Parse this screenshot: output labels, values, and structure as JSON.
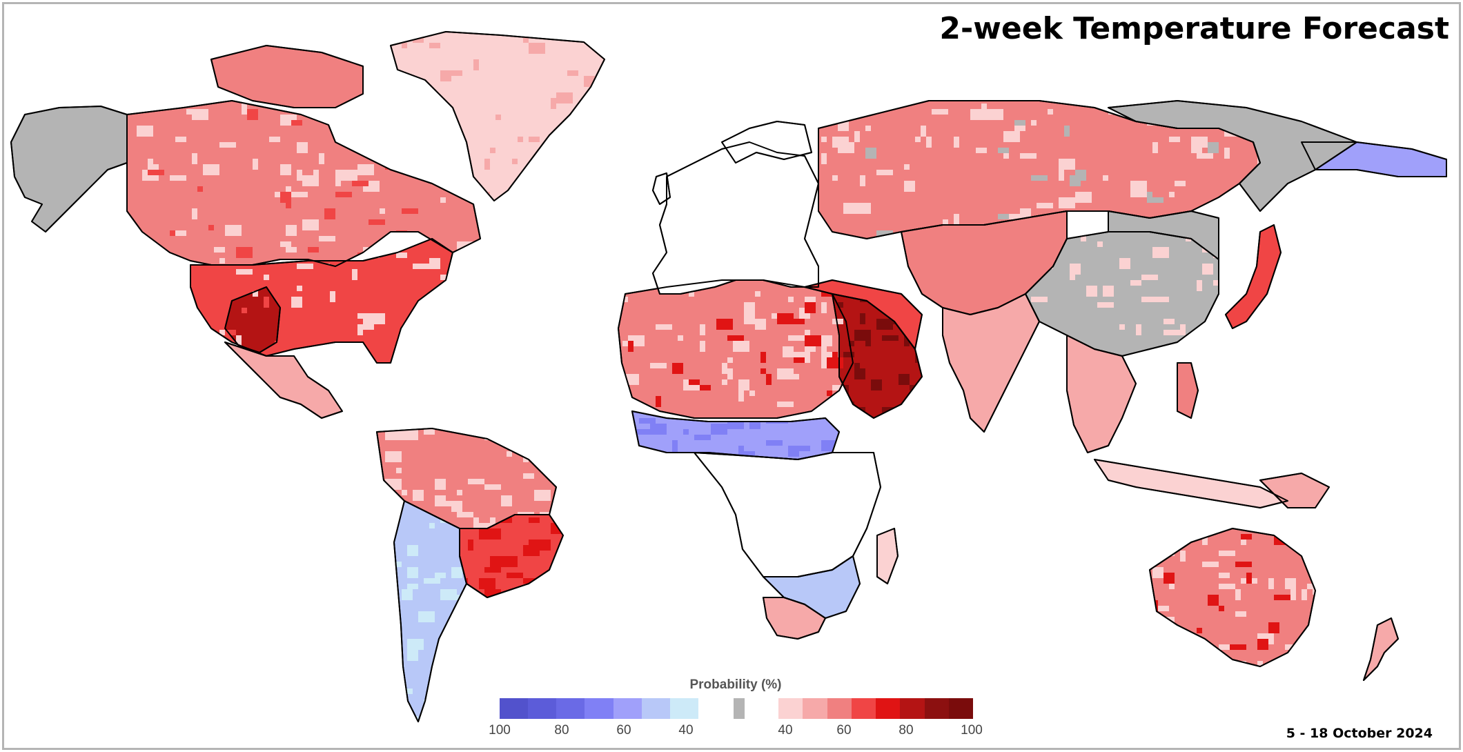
{
  "title": "2-week Temperature Forecast",
  "date_range": "5 - 18 October 2024",
  "legend": {
    "title": "Probability (%)",
    "cold_colors": [
      "#5252cc",
      "#5c5cd9",
      "#6a6ae6",
      "#8080f5",
      "#a0a0fa",
      "#b8c8f8",
      "#cdeaf8"
    ],
    "neutral_color": "#b4b4b4",
    "warm_colors": [
      "#fbd2d2",
      "#f6a9a9",
      "#f08080",
      "#f04545",
      "#e01414",
      "#b41414",
      "#8c1010",
      "#7a0c0c"
    ],
    "cold_ticks": [
      "100",
      "80",
      "60",
      "40"
    ],
    "warm_ticks": [
      "40",
      "60",
      "80",
      "100"
    ]
  },
  "map": {
    "ocean_color": "#ffffff",
    "border_color": "#000000",
    "regions": [
      {
        "name": "canada",
        "probability": 55,
        "category": "warm"
      },
      {
        "name": "alaska",
        "probability": 0,
        "category": "neutral"
      },
      {
        "name": "united-states",
        "probability": 60,
        "category": "warm"
      },
      {
        "name": "us-southwest",
        "probability": 80,
        "category": "warm"
      },
      {
        "name": "greenland",
        "probability": 40,
        "category": "warm"
      },
      {
        "name": "south-america-north",
        "probability": 55,
        "category": "warm"
      },
      {
        "name": "brazil",
        "probability": 65,
        "category": "warm"
      },
      {
        "name": "patagonia",
        "probability": 45,
        "category": "cold"
      },
      {
        "name": "north-africa",
        "probability": 55,
        "category": "warm"
      },
      {
        "name": "sahel",
        "probability": 55,
        "category": "cold"
      },
      {
        "name": "southern-africa",
        "probability": 50,
        "category": "cold"
      },
      {
        "name": "south-africa",
        "probability": 50,
        "category": "warm"
      },
      {
        "name": "arabian-peninsula",
        "probability": 85,
        "category": "warm"
      },
      {
        "name": "russia",
        "probability": 55,
        "category": "warm"
      },
      {
        "name": "east-siberia",
        "probability": 55,
        "category": "cold"
      },
      {
        "name": "central-asia",
        "probability": 55,
        "category": "warm"
      },
      {
        "name": "china",
        "probability": 0,
        "category": "neutral"
      },
      {
        "name": "india",
        "probability": 45,
        "category": "warm"
      },
      {
        "name": "japan",
        "probability": 65,
        "category": "warm"
      },
      {
        "name": "southeast-asia",
        "probability": 45,
        "category": "warm"
      },
      {
        "name": "australia",
        "probability": 55,
        "category": "warm"
      },
      {
        "name": "new-zealand",
        "probability": 45,
        "category": "warm"
      }
    ]
  }
}
